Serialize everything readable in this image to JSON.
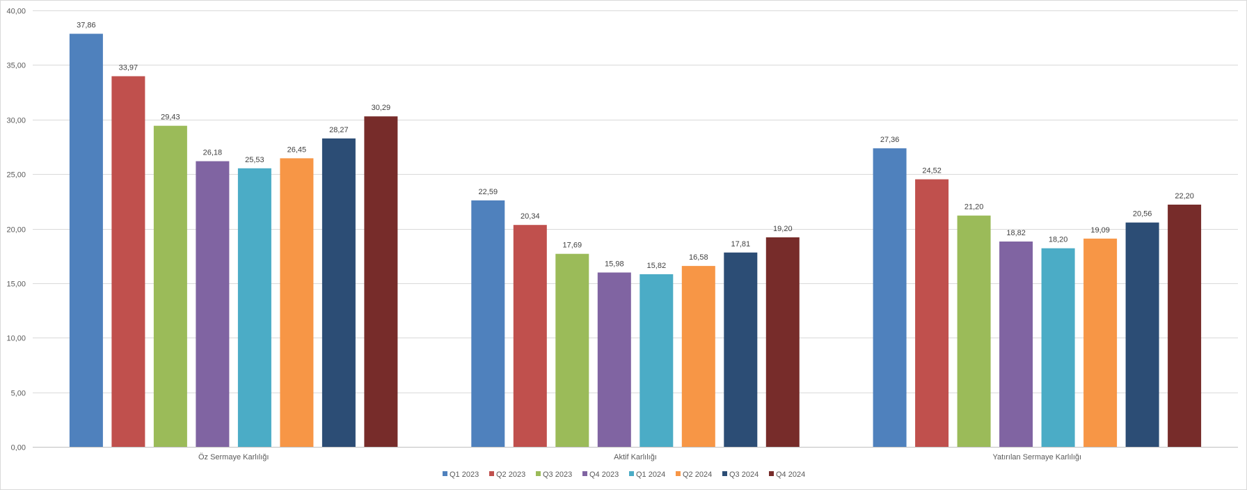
{
  "chart_data": {
    "type": "bar",
    "categories": [
      "Öz Sermaye Karlılığı",
      "Aktif Karlılığı",
      "Yatırılan Sermaye Karlılığı"
    ],
    "series": [
      {
        "name": "Q1 2023",
        "color": "#4f81bd",
        "values": [
          37.86,
          22.59,
          27.36
        ],
        "labels": [
          "37,86",
          "22,59",
          "27,36"
        ]
      },
      {
        "name": "Q2 2023",
        "color": "#c0504d",
        "values": [
          33.97,
          20.34,
          24.52
        ],
        "labels": [
          "33,97",
          "20,34",
          "24,52"
        ]
      },
      {
        "name": "Q3 2023",
        "color": "#9bbb59",
        "values": [
          29.43,
          17.69,
          21.2
        ],
        "labels": [
          "29,43",
          "17,69",
          "21,20"
        ]
      },
      {
        "name": "Q4 2023",
        "color": "#8064a2",
        "values": [
          26.18,
          15.98,
          18.82
        ],
        "labels": [
          "26,18",
          "15,98",
          "18,82"
        ]
      },
      {
        "name": "Q1 2024",
        "color": "#4bacc6",
        "values": [
          25.53,
          15.82,
          18.2
        ],
        "labels": [
          "25,53",
          "15,82",
          "18,20"
        ]
      },
      {
        "name": "Q2 2024",
        "color": "#f79646",
        "values": [
          26.45,
          16.58,
          19.09
        ],
        "labels": [
          "26,45",
          "16,58",
          "19,09"
        ]
      },
      {
        "name": "Q3 2024",
        "color": "#2c4d75",
        "values": [
          28.27,
          17.81,
          20.56
        ],
        "labels": [
          "28,27",
          "17,81",
          "20,56"
        ]
      },
      {
        "name": "Q4 2024",
        "color": "#772c2a",
        "values": [
          30.29,
          19.2,
          22.2
        ],
        "labels": [
          "30,29",
          "19,20",
          "22,20"
        ]
      }
    ],
    "ylim": [
      0,
      40
    ],
    "yticks": [
      0,
      5,
      10,
      15,
      20,
      25,
      30,
      35,
      40
    ],
    "ytick_labels": [
      "0,00",
      "5,00",
      "10,00",
      "15,00",
      "20,00",
      "25,00",
      "30,00",
      "35,00",
      "40,00"
    ],
    "grid": true,
    "legend_position": "bottom"
  }
}
